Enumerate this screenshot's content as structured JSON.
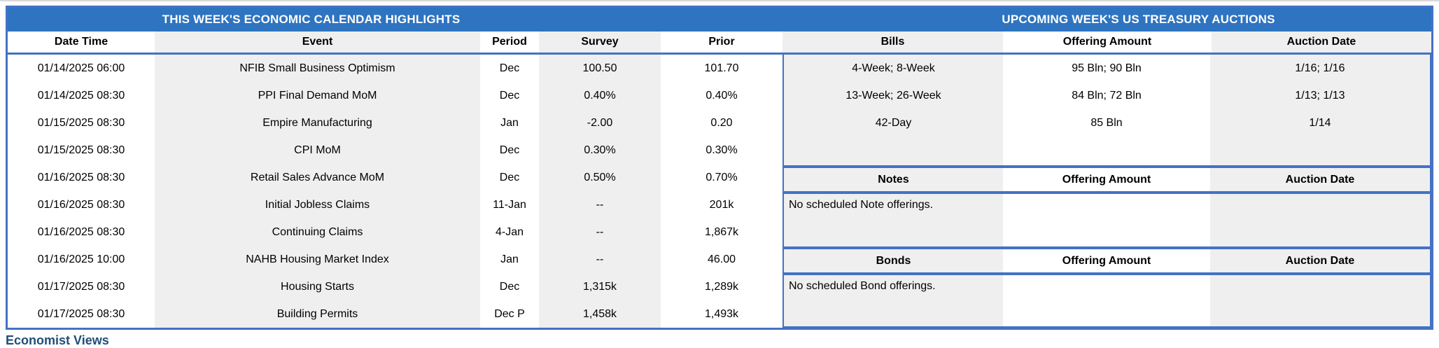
{
  "titles": {
    "left": "THIS WEEK'S ECONOMIC CALENDAR HIGHLIGHTS",
    "right": "UPCOMING WEEK'S US TREASURY AUCTIONS"
  },
  "calendar": {
    "headers": {
      "date": "Date Time",
      "event": "Event",
      "period": "Period",
      "survey": "Survey",
      "prior": "Prior"
    },
    "rows": [
      {
        "date": "01/14/2025 06:00",
        "event": "NFIB Small Business Optimism",
        "period": "Dec",
        "survey": "100.50",
        "prior": "101.70"
      },
      {
        "date": "01/14/2025 08:30",
        "event": "PPI Final Demand MoM",
        "period": "Dec",
        "survey": "0.40%",
        "prior": "0.40%"
      },
      {
        "date": "01/15/2025 08:30",
        "event": "Empire Manufacturing",
        "period": "Jan",
        "survey": "-2.00",
        "prior": "0.20"
      },
      {
        "date": "01/15/2025 08:30",
        "event": "CPI MoM",
        "period": "Dec",
        "survey": "0.30%",
        "prior": "0.30%"
      },
      {
        "date": "01/16/2025 08:30",
        "event": "Retail Sales Advance MoM",
        "period": "Dec",
        "survey": "0.50%",
        "prior": "0.70%"
      },
      {
        "date": "01/16/2025 08:30",
        "event": "Initial Jobless Claims",
        "period": "11-Jan",
        "survey": "--",
        "prior": "201k"
      },
      {
        "date": "01/16/2025 08:30",
        "event": "Continuing Claims",
        "period": "4-Jan",
        "survey": "--",
        "prior": "1,867k"
      },
      {
        "date": "01/16/2025 10:00",
        "event": "NAHB Housing Market Index",
        "period": "Jan",
        "survey": "--",
        "prior": "46.00"
      },
      {
        "date": "01/17/2025 08:30",
        "event": "Housing Starts",
        "period": "Dec",
        "survey": "1,315k",
        "prior": "1,289k"
      },
      {
        "date": "01/17/2025 08:30",
        "event": "Building Permits",
        "period": "Dec P",
        "survey": "1,458k",
        "prior": "1,493k"
      }
    ]
  },
  "auctions": {
    "bills": {
      "header": {
        "type": "Bills",
        "amount": "Offering Amount",
        "date": "Auction Date"
      },
      "rows": [
        {
          "type": "4-Week; 8-Week",
          "amount": "95 Bln; 90 Bln",
          "date": "1/16; 1/16"
        },
        {
          "type": "13-Week; 26-Week",
          "amount": "84 Bln; 72 Bln",
          "date": "1/13; 1/13"
        },
        {
          "type": "42-Day",
          "amount": "85 Bln",
          "date": "1/14"
        }
      ]
    },
    "notes": {
      "header": {
        "type": "Notes",
        "amount": "Offering Amount",
        "date": "Auction Date"
      },
      "message": "No scheduled Note offerings."
    },
    "bonds": {
      "header": {
        "type": "Bonds",
        "amount": "Offering Amount",
        "date": "Auction Date"
      },
      "message": "No scheduled Bond offerings."
    }
  },
  "footer": {
    "text": "Economist Views"
  },
  "colors": {
    "title_bar": "#2E74C0",
    "border": "#4472C4",
    "stripe": "#EFEFEF",
    "footer_text": "#1F4E79"
  }
}
